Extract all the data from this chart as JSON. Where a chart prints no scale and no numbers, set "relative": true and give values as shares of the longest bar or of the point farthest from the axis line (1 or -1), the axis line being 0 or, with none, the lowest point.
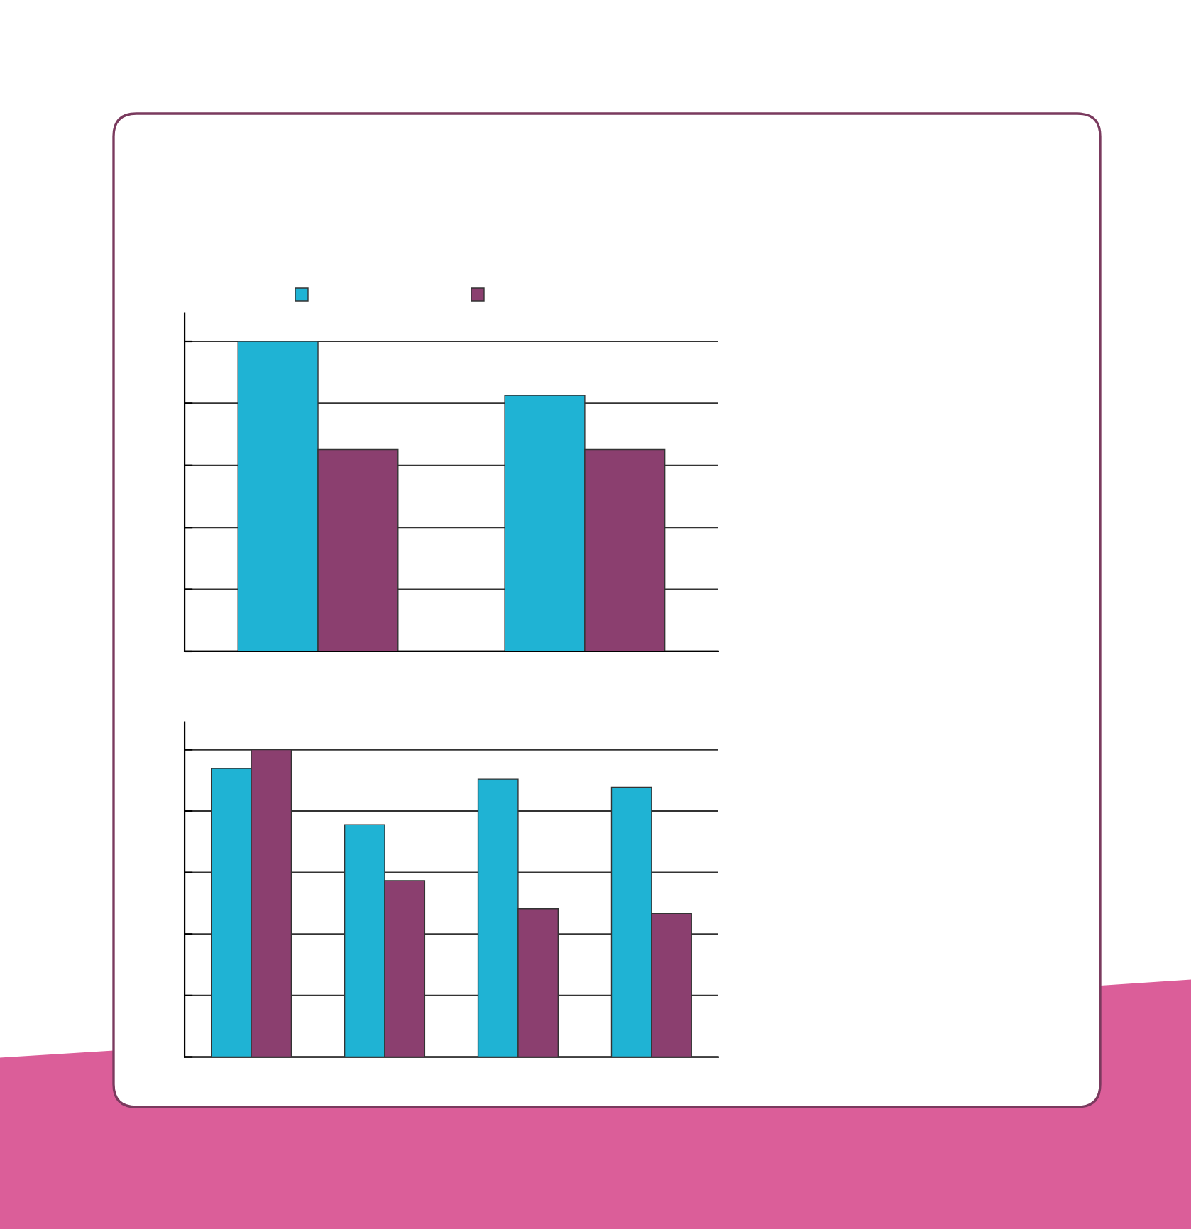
{
  "chart_data": [
    {
      "type": "bar",
      "relative": true,
      "categories": [
        null,
        null
      ],
      "grid": "y",
      "series": [
        {
          "color": "#1fb3d4",
          "values": [
            1,
            0.826
          ]
        },
        {
          "color": "#8b3f6f",
          "values": [
            0.651,
            0.651
          ]
        }
      ]
    },
    {
      "type": "bar",
      "relative": true,
      "categories": [
        null,
        null,
        null,
        null
      ],
      "grid": "y",
      "series": [
        {
          "color": "#1fb3d4",
          "values": [
            0.939,
            0.756,
            0.904,
            0.878
          ]
        },
        {
          "color": "#8b3f6f",
          "values": [
            1,
            0.574,
            0.482,
            0.467
          ]
        }
      ]
    }
  ]
}
